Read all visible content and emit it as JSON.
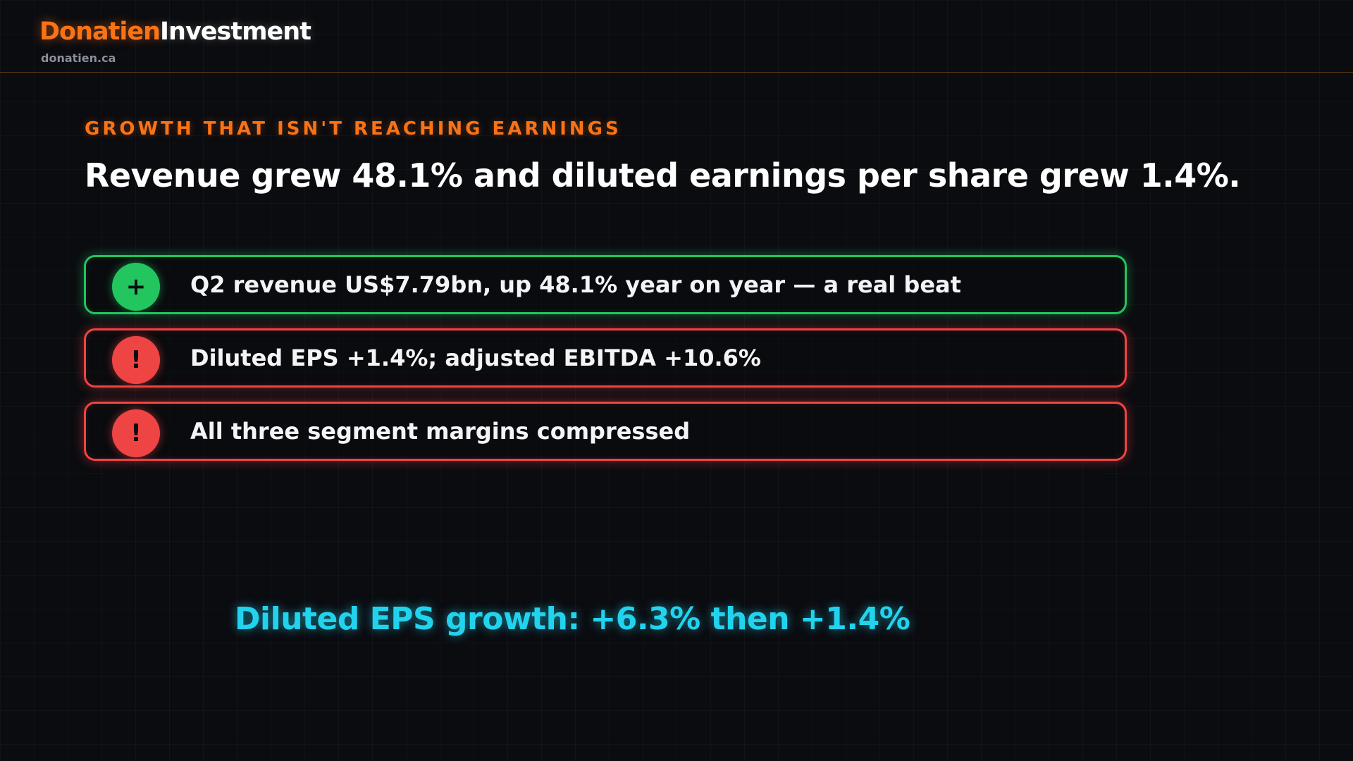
{
  "brand": {
    "name_part1": "Donatien",
    "name_part2": "Investment",
    "url": "donatien.ca",
    "accent_color": "#f97316"
  },
  "slide": {
    "kicker": "GROWTH THAT ISN'T REACHING EARNINGS",
    "headline": "Revenue grew 48.1% and diluted earnings per share grew 1.4%."
  },
  "points": [
    {
      "status": "positive",
      "badge_symbol": "+",
      "icon": "plus-icon",
      "color": "#22c55e",
      "text": "Q2 revenue US$7.79bn, up 48.1% year on year — a real beat"
    },
    {
      "status": "warning",
      "badge_symbol": "!",
      "icon": "exclamation-icon",
      "color": "#ef4444",
      "text": "Diluted EPS +1.4%; adjusted EBITDA +10.6%"
    },
    {
      "status": "warning",
      "badge_symbol": "!",
      "icon": "exclamation-icon",
      "color": "#ef4444",
      "text": "All three segment margins compressed"
    }
  ],
  "callout": {
    "text": "Diluted EPS growth: +6.3% then +1.4%",
    "color": "#22d3ee"
  }
}
